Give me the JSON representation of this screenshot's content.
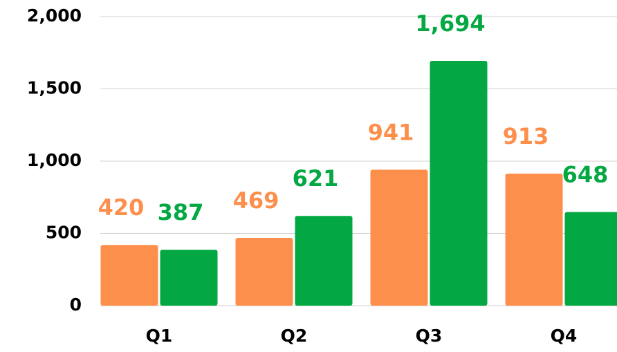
{
  "chart_data": {
    "type": "bar",
    "categories": [
      "Q1",
      "Q2",
      "Q3",
      "Q4"
    ],
    "series": [
      {
        "color": "#fd8f4c",
        "values": [
          420,
          469,
          941,
          913
        ]
      },
      {
        "color": "#03a843",
        "values": [
          387,
          621,
          1694,
          648
        ],
        "value_labels": [
          "387",
          "621",
          "1,694",
          "648"
        ]
      }
    ],
    "ylim": [
      0,
      2000
    ],
    "yticks": [
      0,
      500,
      {
        "value": 1000,
        "label": "1,000"
      },
      {
        "value": 1500,
        "label": "1,500"
      },
      {
        "value": 2000,
        "label": "2,000"
      }
    ],
    "grid": true
  }
}
